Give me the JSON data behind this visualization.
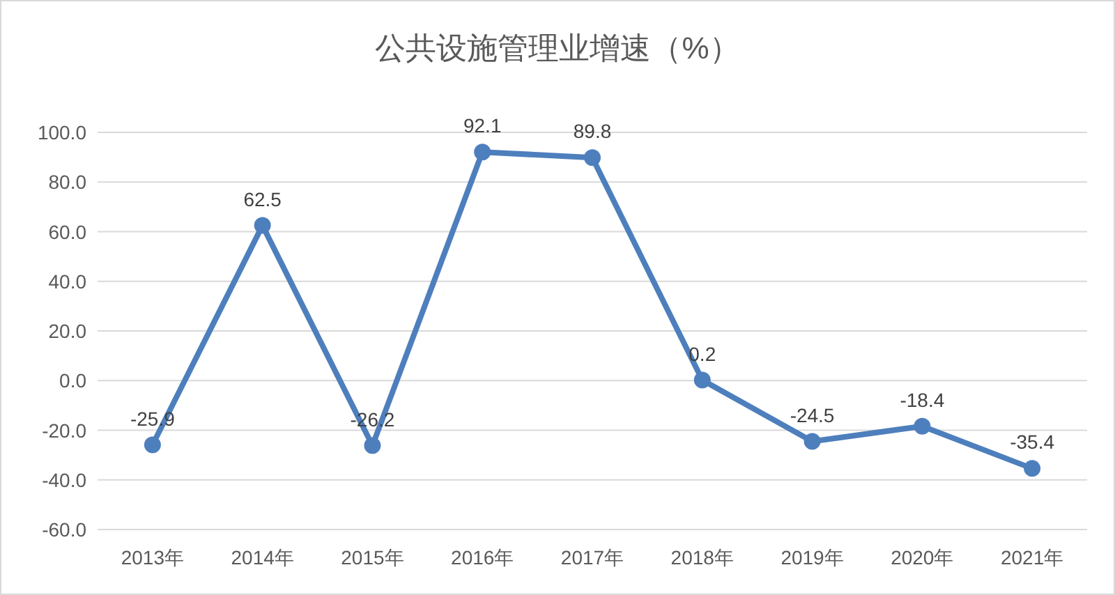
{
  "chart_data": {
    "type": "line",
    "title": "公共设施管理业增速（%）",
    "categories": [
      "2013年",
      "2014年",
      "2015年",
      "2016年",
      "2017年",
      "2018年",
      "2019年",
      "2020年",
      "2021年"
    ],
    "series": [
      {
        "color": "#4e7fbd",
        "values": [
          -25.9,
          62.5,
          -26.2,
          92.1,
          89.8,
          0.2,
          -24.5,
          -18.4,
          -35.4
        ]
      }
    ],
    "ylim": [
      -60,
      100
    ],
    "yticks": [
      {
        "value": -60,
        "label": "-60.0"
      },
      {
        "value": -40,
        "label": "-40.0"
      },
      {
        "value": -20,
        "label": "-20.0"
      },
      {
        "value": 0,
        "label": "0.0"
      },
      {
        "value": 20,
        "label": "20.0"
      },
      {
        "value": 40,
        "label": "40.0"
      },
      {
        "value": 60,
        "label": "60.0"
      },
      {
        "value": 80,
        "label": "80.0"
      },
      {
        "value": 100,
        "label": "100.0"
      }
    ],
    "grid": "y",
    "marker": "circle",
    "line_style": "solid",
    "data_labels": true
  }
}
